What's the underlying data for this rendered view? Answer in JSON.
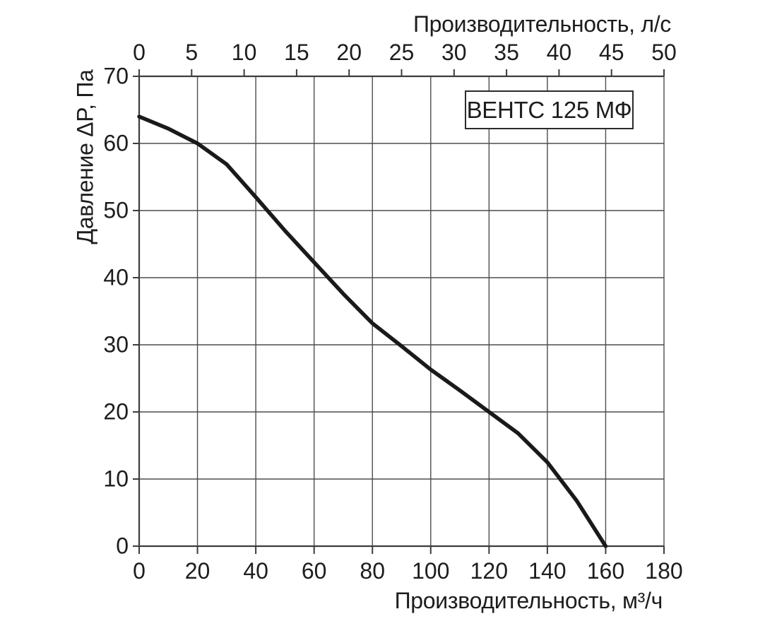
{
  "chart_data": {
    "type": "line",
    "series_label_box": "ВЕНТС 125 МФ",
    "x_top": {
      "label": "Производительность, л/с",
      "ticks": [
        0,
        5,
        10,
        15,
        20,
        25,
        30,
        35,
        40,
        45,
        50
      ],
      "range": [
        0,
        50
      ]
    },
    "x_bottom": {
      "label": "Производительность, м³/ч",
      "ticks": [
        0,
        20,
        40,
        60,
        80,
        100,
        120,
        140,
        160,
        180
      ],
      "range": [
        0,
        180
      ]
    },
    "y_left": {
      "label": "Давление ΔP, Па",
      "ticks": [
        0,
        10,
        20,
        30,
        40,
        50,
        60,
        70
      ],
      "range": [
        0,
        70
      ]
    },
    "grid": true,
    "legend_position": "inside-top-right-box",
    "series": [
      {
        "name": "ВЕНТС 125 МФ",
        "x_unit": "м³/ч",
        "y_unit": "Па",
        "points": [
          [
            0,
            64
          ],
          [
            10,
            62.2
          ],
          [
            20,
            60
          ],
          [
            30,
            56.9
          ],
          [
            40,
            52
          ],
          [
            50,
            47
          ],
          [
            60,
            42.3
          ],
          [
            70,
            37.6
          ],
          [
            80,
            33.2
          ],
          [
            90,
            29.8
          ],
          [
            100,
            26.3
          ],
          [
            110,
            23.2
          ],
          [
            120,
            20
          ],
          [
            130,
            16.8
          ],
          [
            140,
            12.5
          ],
          [
            150,
            6.8
          ],
          [
            160,
            0
          ]
        ]
      }
    ],
    "colors": {
      "curve": "#1a1a1a",
      "grid": "#4d4d4d",
      "axis": "#3c3c3c",
      "text": "#1d1d1d",
      "background": "#ffffff"
    }
  }
}
